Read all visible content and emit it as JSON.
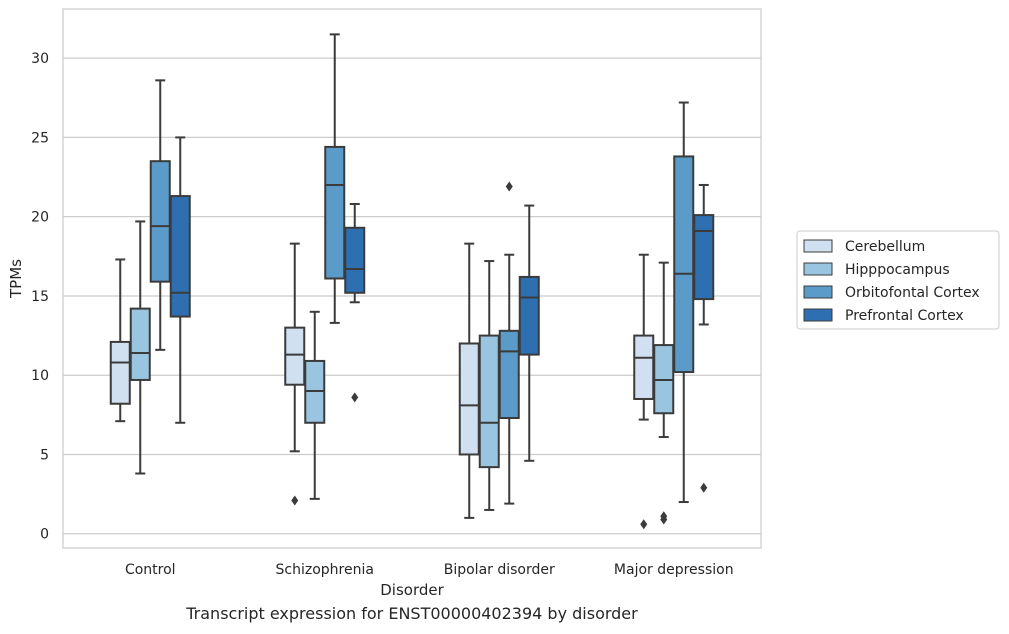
{
  "caption": "Transcript expression for ENST00000402394 by disorder",
  "chart_data": {
    "type": "box",
    "title": "",
    "xlabel": "Disorder",
    "ylabel": "TPMs",
    "ylim": [
      -0.9,
      33.1
    ],
    "yticks": [
      0,
      5,
      10,
      15,
      20,
      25,
      30
    ],
    "grid": "horizontal",
    "legend_position": "right",
    "categories": [
      "Control",
      "Schizophrenia",
      "Bipolar disorder",
      "Major depression"
    ],
    "series": [
      {
        "name": "Cerebellum",
        "color": "#d0e0f0",
        "boxes": [
          {
            "whisker_low": 7.1,
            "q1": 8.2,
            "median": 10.8,
            "q3": 12.1,
            "whisker_high": 17.3,
            "outliers": []
          },
          {
            "whisker_low": 5.2,
            "q1": 9.4,
            "median": 11.3,
            "q3": 13.0,
            "whisker_high": 18.3,
            "outliers": [
              2.1
            ]
          },
          {
            "whisker_low": 1.0,
            "q1": 5.0,
            "median": 8.1,
            "q3": 12.0,
            "whisker_high": 18.3,
            "outliers": []
          },
          {
            "whisker_low": 7.2,
            "q1": 8.5,
            "median": 11.1,
            "q3": 12.5,
            "whisker_high": 17.6,
            "outliers": [
              0.6
            ]
          }
        ]
      },
      {
        "name": "Hipppocampus",
        "color": "#9ac5e0",
        "boxes": [
          {
            "whisker_low": 3.8,
            "q1": 9.7,
            "median": 11.4,
            "q3": 14.2,
            "whisker_high": 19.7,
            "outliers": []
          },
          {
            "whisker_low": 2.2,
            "q1": 7.0,
            "median": 9.0,
            "q3": 10.9,
            "whisker_high": 14.0,
            "outliers": []
          },
          {
            "whisker_low": 1.5,
            "q1": 4.2,
            "median": 7.0,
            "q3": 12.5,
            "whisker_high": 17.2,
            "outliers": []
          },
          {
            "whisker_low": 6.1,
            "q1": 7.6,
            "median": 9.7,
            "q3": 11.9,
            "whisker_high": 17.1,
            "outliers": [
              0.9,
              1.1
            ]
          }
        ]
      },
      {
        "name": "Orbitofontal Cortex",
        "color": "#5b9bc9",
        "boxes": [
          {
            "whisker_low": 11.6,
            "q1": 15.9,
            "median": 19.4,
            "q3": 23.5,
            "whisker_high": 28.6,
            "outliers": []
          },
          {
            "whisker_low": 13.3,
            "q1": 16.1,
            "median": 22.0,
            "q3": 24.4,
            "whisker_high": 31.5,
            "outliers": []
          },
          {
            "whisker_low": 1.9,
            "q1": 7.3,
            "median": 11.5,
            "q3": 12.8,
            "whisker_high": 17.6,
            "outliers": [
              21.9
            ]
          },
          {
            "whisker_low": 2.0,
            "q1": 10.2,
            "median": 16.4,
            "q3": 23.8,
            "whisker_high": 27.2,
            "outliers": []
          }
        ]
      },
      {
        "name": "Prefrontal Cortex",
        "color": "#2d6fb0",
        "boxes": [
          {
            "whisker_low": 7.0,
            "q1": 13.7,
            "median": 15.2,
            "q3": 21.3,
            "whisker_high": 25.0,
            "outliers": []
          },
          {
            "whisker_low": 14.6,
            "q1": 15.2,
            "median": 16.7,
            "q3": 19.3,
            "whisker_high": 20.8,
            "outliers": [
              8.6
            ]
          },
          {
            "whisker_low": 4.6,
            "q1": 11.3,
            "median": 14.9,
            "q3": 16.2,
            "whisker_high": 20.7,
            "outliers": []
          },
          {
            "whisker_low": 13.2,
            "q1": 14.8,
            "median": 19.1,
            "q3": 20.1,
            "whisker_high": 22.0,
            "outliers": [
              2.9
            ]
          }
        ]
      }
    ]
  }
}
